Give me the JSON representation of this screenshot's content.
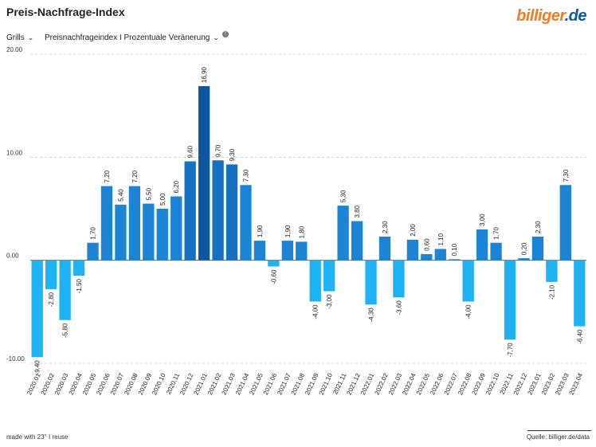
{
  "header": {
    "title": "Preis-Nachfrage-Index"
  },
  "logo": {
    "part1": "billiger",
    "part2": ".de"
  },
  "controls": {
    "category": "Grills",
    "metric": "Preisnachfrageindex I Prozentuale Veränerung",
    "info_symbol": "!"
  },
  "footer": {
    "made_with": "made with 23° I reuse",
    "source": "Quelle: billiger.de/data"
  },
  "colors": {
    "bar_low": "#1fb2f3",
    "bar_mid": "#1b84d4",
    "bar_high": "#0e57a0",
    "grid": "#c8c8c8"
  },
  "chart_data": {
    "type": "bar",
    "title": "Preis-Nachfrage-Index",
    "xlabel": "",
    "ylabel": "",
    "ylim": [
      -10,
      20
    ],
    "yticks": [
      -10,
      0,
      10,
      20
    ],
    "ytick_labels": [
      "-10.00",
      "0.00",
      "10.00",
      "20.00"
    ],
    "grid": true,
    "categories": [
      "2020.01",
      "2020.02",
      "2020.03",
      "2020.04",
      "2020.05",
      "2020.06",
      "2020.07",
      "2020.08",
      "2020.09",
      "2020.10",
      "2020.11",
      "2020.12",
      "2021.01",
      "2021.02",
      "2021.03",
      "2021.04",
      "2021.05",
      "2021.06",
      "2021.07",
      "2021.08",
      "2021.09",
      "2021.10",
      "2021.11",
      "2021.12",
      "2022.01",
      "2022.02",
      "2022.03",
      "2022.04",
      "2022.05",
      "2022.06",
      "2022.07",
      "2022.08",
      "2022.09",
      "2022.10",
      "2022.11",
      "2022.12",
      "2023.01",
      "2023.02",
      "2023.03",
      "2023.04"
    ],
    "values": [
      -9.4,
      -2.8,
      -5.8,
      -1.5,
      1.7,
      7.2,
      5.4,
      7.2,
      5.5,
      5.0,
      6.2,
      9.6,
      16.9,
      9.7,
      9.3,
      7.3,
      1.9,
      -0.6,
      1.9,
      1.8,
      -4.0,
      -3.0,
      5.3,
      3.8,
      -4.3,
      2.3,
      -3.6,
      2.0,
      0.6,
      1.1,
      0.1,
      -4.0,
      3.0,
      1.7,
      -7.7,
      0.2,
      2.3,
      -2.1,
      7.3,
      -6.4
    ],
    "value_labels": [
      "-9,40",
      "-2,80",
      "-5,80",
      "-1,50",
      "1,70",
      "7,20",
      "5,40",
      "7,20",
      "5,50",
      "5,00",
      "6,20",
      "9,60",
      "16,90",
      "9,70",
      "9,30",
      "7,30",
      "1,90",
      "-0,60",
      "1,90",
      "1,80",
      "-4,00",
      "-3,00",
      "5,30",
      "3,80",
      "-4,30",
      "2,30",
      "-3,60",
      "2,00",
      "0,60",
      "1,10",
      "0,10",
      "-4,00",
      "3,00",
      "1,70",
      "-7,70",
      "0,20",
      "2,30",
      "-2,10",
      "7,30",
      "-6,40"
    ]
  }
}
